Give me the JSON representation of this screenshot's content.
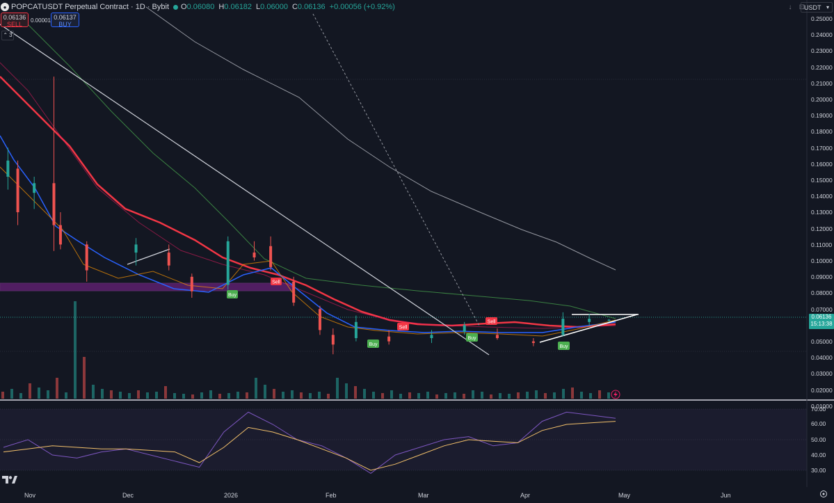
{
  "header": {
    "symbol_icon": "popcat-coin-icon",
    "title": "POPCATUSDT Perpetual Contract · 1D · Bybit",
    "ohlc": [
      {
        "k": "O",
        "v": "0.06080"
      },
      {
        "k": "H",
        "v": "0.06182"
      },
      {
        "k": "L",
        "v": "0.06000"
      },
      {
        "k": "C",
        "v": "0.06136"
      },
      {
        "k": "",
        "v": "+0.00056 (+0.92%)"
      }
    ],
    "sell_price": "0.06136",
    "sell_label": "SELL",
    "buy_price": "0.06137",
    "buy_label": "BUY",
    "spread": "0.00001",
    "indicators_count": "3"
  },
  "toolbar": {
    "icons": [
      "arrow-down-icon",
      "maximize-icon",
      "more-icon"
    ],
    "currency": "USDT"
  },
  "price_axis": {
    "labels": [
      "0.25000",
      "0.24000",
      "0.23000",
      "0.22000",
      "0.21000",
      "0.20000",
      "0.19000",
      "0.18000",
      "0.17000",
      "0.16000",
      "0.15000",
      "0.14000",
      "0.13000",
      "0.12000",
      "0.11000",
      "0.10000",
      "0.09000",
      "0.08000",
      "0.07000",
      "0.06000",
      "0.05000",
      "0.04000",
      "0.03000",
      "0.02000",
      "0.01000"
    ],
    "current_price": "0.06136",
    "countdown": "15:13:38"
  },
  "rsi_axis": {
    "labels": [
      "70.00",
      "60.00",
      "50.00",
      "40.00",
      "30.00"
    ]
  },
  "time_axis": {
    "labels": [
      "Nov",
      "Dec",
      "2026",
      "Feb",
      "Mar",
      "Apr",
      "May",
      "Jun"
    ]
  },
  "signals": [
    {
      "text": "Sell"
    },
    {
      "text": "Sell"
    },
    {
      "text": "Sell"
    },
    {
      "text": "Buy"
    },
    {
      "text": "Buy"
    },
    {
      "text": "Buy"
    },
    {
      "text": "Buy"
    }
  ],
  "colors": {
    "background": "#131722",
    "up": "#26a69a",
    "down": "#ef5350",
    "ema_red": "#f23645",
    "ema_blue": "#2962ff",
    "rsi": "#7e57c2",
    "rsi_ma": "#f5c26b"
  },
  "chart_data": [
    {
      "type": "candlestick",
      "title": "POPCATUSDT Perpetual Contract · 1D · Bybit",
      "x_range": [
        "Oct 2025",
        "Jun 2026"
      ],
      "ylim": [
        0.01,
        0.255
      ],
      "ohlc": [
        {
          "x": "2025-10-27",
          "o": 0.15,
          "h": 0.168,
          "l": 0.142,
          "c": 0.16
        },
        {
          "x": "2025-10-30",
          "o": 0.155,
          "h": 0.16,
          "l": 0.12,
          "c": 0.128
        },
        {
          "x": "2025-11-04",
          "o": 0.14,
          "h": 0.15,
          "l": 0.13,
          "c": 0.146
        },
        {
          "x": "2025-11-10",
          "o": 0.146,
          "h": 0.212,
          "l": 0.104,
          "c": 0.12
        },
        {
          "x": "2025-11-12",
          "o": 0.12,
          "h": 0.128,
          "l": 0.105,
          "c": 0.108
        },
        {
          "x": "2025-11-20",
          "o": 0.108,
          "h": 0.11,
          "l": 0.085,
          "c": 0.092
        },
        {
          "x": "2025-12-05",
          "o": 0.103,
          "h": 0.112,
          "l": 0.095,
          "c": 0.108
        },
        {
          "x": "2025-12-15",
          "o": 0.103,
          "h": 0.108,
          "l": 0.092,
          "c": 0.095
        },
        {
          "x": "2025-12-22",
          "o": 0.088,
          "h": 0.09,
          "l": 0.075,
          "c": 0.079
        },
        {
          "x": "2026-01-02",
          "o": 0.083,
          "h": 0.113,
          "l": 0.08,
          "c": 0.11
        },
        {
          "x": "2026-01-10",
          "o": 0.103,
          "h": 0.11,
          "l": 0.098,
          "c": 0.1
        },
        {
          "x": "2026-01-15",
          "o": 0.107,
          "h": 0.113,
          "l": 0.092,
          "c": 0.094
        },
        {
          "x": "2026-01-22",
          "o": 0.085,
          "h": 0.088,
          "l": 0.07,
          "c": 0.072
        },
        {
          "x": "2026-01-30",
          "o": 0.068,
          "h": 0.07,
          "l": 0.052,
          "c": 0.055
        },
        {
          "x": "2026-02-03",
          "o": 0.052,
          "h": 0.056,
          "l": 0.04,
          "c": 0.046
        },
        {
          "x": "2026-02-10",
          "o": 0.05,
          "h": 0.064,
          "l": 0.048,
          "c": 0.06
        },
        {
          "x": "2026-02-20",
          "o": 0.051,
          "h": 0.055,
          "l": 0.046,
          "c": 0.048
        },
        {
          "x": "2026-03-05",
          "o": 0.05,
          "h": 0.055,
          "l": 0.047,
          "c": 0.052
        },
        {
          "x": "2026-03-15",
          "o": 0.054,
          "h": 0.06,
          "l": 0.052,
          "c": 0.058
        },
        {
          "x": "2026-03-25",
          "o": 0.052,
          "h": 0.056,
          "l": 0.049,
          "c": 0.05
        },
        {
          "x": "2026-04-05",
          "o": 0.048,
          "h": 0.05,
          "l": 0.045,
          "c": 0.047
        },
        {
          "x": "2026-04-14",
          "o": 0.052,
          "h": 0.066,
          "l": 0.051,
          "c": 0.062
        },
        {
          "x": "2026-04-22",
          "o": 0.06,
          "h": 0.065,
          "l": 0.058,
          "c": 0.062
        },
        {
          "x": "2026-04-28",
          "o": 0.0608,
          "h": 0.06182,
          "l": 0.06,
          "c": 0.06136
        }
      ]
    },
    {
      "type": "line",
      "title": "RSI",
      "ylim": [
        20,
        80
      ],
      "series": [
        {
          "values": [
            45,
            50,
            40,
            38,
            42,
            44,
            40,
            36,
            32,
            55,
            68,
            60,
            50,
            46,
            38,
            28,
            40,
            45,
            50,
            52,
            46,
            48,
            62,
            68,
            66,
            64
          ]
        },
        {
          "values": [
            42,
            44,
            46,
            45,
            44,
            44,
            43,
            42,
            35,
            45,
            58,
            55,
            50,
            44,
            38,
            30,
            34,
            40,
            46,
            50,
            49,
            48,
            56,
            60,
            61,
            62
          ]
        }
      ]
    }
  ]
}
